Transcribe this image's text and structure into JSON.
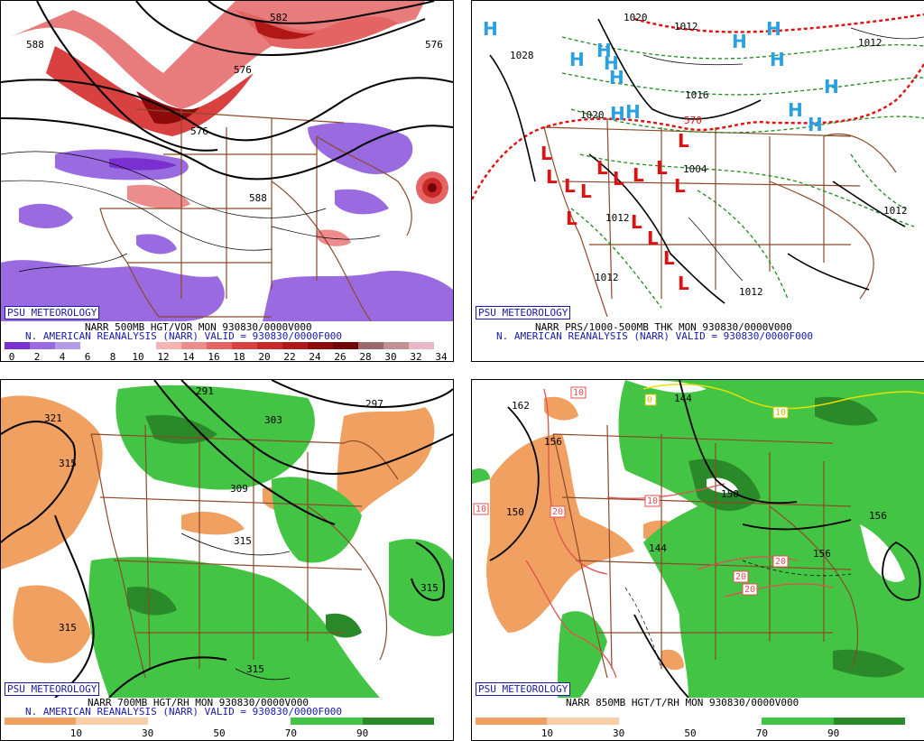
{
  "panels": {
    "vor": {
      "brand": "PSU METEOROLOGY",
      "line1": "NARR 500MB HGT/VOR MON 930830/0000V000",
      "line2": "N. AMERICAN REANALYSIS (NARR) VALID = 930830/0000F000",
      "ticks": [
        "0",
        "2",
        "4",
        "6",
        "8",
        "10",
        "12",
        "14",
        "16",
        "18",
        "20",
        "22",
        "24",
        "26",
        "28",
        "30",
        "32",
        "34"
      ],
      "colors": [
        "#7a2fd0",
        "#9a6ae0",
        "#b49be8",
        "#ffffff",
        "#ffffff",
        "#ffffff",
        "#f4b4b4",
        "#ec8c8c",
        "#e46464",
        "#d94040",
        "#c82828",
        "#b01818",
        "#8c0a0a",
        "#6e0606",
        "#9a6a6a",
        "#c29292",
        "#e8b8c8"
      ],
      "contour_labels": [
        "588",
        "582",
        "576",
        "576",
        "588",
        "576"
      ]
    },
    "thk": {
      "brand": "PSU METEOROLOGY",
      "line1": "NARR PRS/1000-500MB THK MON 930830/0000V000",
      "line2": "N. AMERICAN REANALYSIS (NARR) VALID = 930830/0000F000",
      "high_symbol": "H",
      "low_symbol": "L",
      "isobar_labels": [
        "1020",
        "1012",
        "1012",
        "1028",
        "1020",
        "1012",
        "1012",
        "1012",
        "1016",
        "1004",
        "1004",
        "1012",
        "1012"
      ],
      "thickness_label": "570",
      "high_color": "#2aa0e0",
      "low_color": "#e01010"
    },
    "rh700": {
      "brand": "PSU METEOROLOGY",
      "line1": "NARR 700MB HGT/RH MON 930830/0000V000",
      "line2": "N. AMERICAN REANALYSIS (NARR) VALID = 930830/0000F000",
      "ticks": [
        "10",
        "30",
        "50",
        "70",
        "90"
      ],
      "colors": [
        "#f0a060",
        "#f8cfa8",
        "#ffffff",
        "#ffffff",
        "#44c444",
        "#2a8a2a"
      ],
      "contour_labels": [
        "321",
        "315",
        "297",
        "303",
        "309",
        "315",
        "315",
        "315",
        "315",
        "291"
      ]
    },
    "t850": {
      "brand": "PSU METEOROLOGY",
      "line1": "NARR 850MB HGT/T/RH MON 930830/0000V000",
      "ticks": [
        "10",
        "30",
        "50",
        "70",
        "90"
      ],
      "colors": [
        "#f0a060",
        "#f8cfa8",
        "#ffffff",
        "#ffffff",
        "#44c444",
        "#2a8a2a"
      ],
      "height_labels": [
        "162",
        "156",
        "150",
        "144",
        "150",
        "156",
        "156",
        "144"
      ],
      "temp_labels": [
        "10",
        "10",
        "20",
        "10",
        "20",
        "20",
        "20",
        "0",
        "10"
      ]
    }
  }
}
